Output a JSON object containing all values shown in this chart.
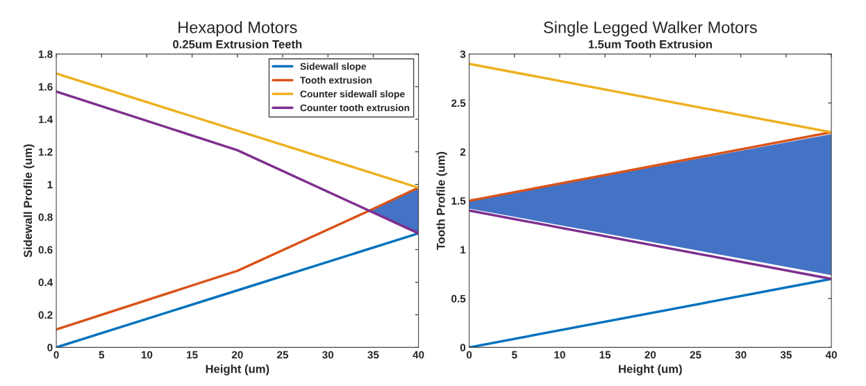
{
  "chart_data": [
    {
      "type": "line",
      "title": "Hexapod Motors",
      "subtitle": "0.25um Extrusion Teeth",
      "xlabel": "Height (um)",
      "ylabel": "Sidewall Profile (um)",
      "xlim": [
        0,
        40
      ],
      "xticks": [
        0,
        5,
        10,
        15,
        20,
        25,
        30,
        35,
        40
      ],
      "ylim": [
        0,
        1.8
      ],
      "yticks": [
        0,
        0.2,
        0.4,
        0.6,
        0.8,
        1,
        1.2,
        1.4,
        1.6,
        1.8
      ],
      "grid": false,
      "legend": "top right",
      "series": [
        {
          "name": "Sidewall slope",
          "color": "#0072bd",
          "x": [
            0,
            20,
            40
          ],
          "values": [
            0,
            0.35,
            0.7
          ]
        },
        {
          "name": "Tooth extrusion",
          "color": "#d95319",
          "x": [
            0,
            20,
            34.6,
            40
          ],
          "values": [
            0.11,
            0.47,
            0.84,
            0.98
          ],
          "lower": [
            null,
            null,
            0.84,
            0.7
          ],
          "upper": [
            null,
            null,
            0.84,
            0.98
          ]
        },
        {
          "name": "Counter sidewall slope",
          "color": "#edb120",
          "x": [
            0,
            20,
            40
          ],
          "values": [
            1.68,
            1.33,
            0.98
          ]
        },
        {
          "name": "Counter tooth extrusion",
          "color": "#7e2f8e",
          "x": [
            0,
            20,
            40
          ],
          "values": [
            1.57,
            1.21,
            0.7
          ]
        }
      ]
    },
    {
      "type": "line",
      "title": "Single Legged Walker Motors",
      "subtitle": "1.5um Tooth Extrusion",
      "xlabel": "Height (um)",
      "ylabel": "Tooth Profile (um)",
      "xlim": [
        0,
        40
      ],
      "xticks": [
        0,
        5,
        10,
        15,
        20,
        25,
        30,
        35,
        40
      ],
      "ylim": [
        0,
        3
      ],
      "yticks": [
        0,
        0.5,
        1,
        1.5,
        2,
        2.5,
        3
      ],
      "grid": false,
      "legend": false,
      "series": [
        {
          "color": "#0072bd",
          "x": [
            0,
            40
          ],
          "values": [
            0,
            0.7
          ]
        },
        {
          "color": "#d95319",
          "x": [
            0,
            40
          ],
          "values": [
            1.5,
            2.2
          ],
          "lower": [
            1.42,
            0.74
          ],
          "upper": [
            1.5,
            2.18
          ]
        },
        {
          "color": "#edb120",
          "x": [
            0,
            40
          ],
          "values": [
            2.9,
            2.2
          ]
        },
        {
          "color": "#7e2f8e",
          "x": [
            0,
            40
          ],
          "values": [
            1.4,
            0.7
          ]
        }
      ]
    }
  ]
}
